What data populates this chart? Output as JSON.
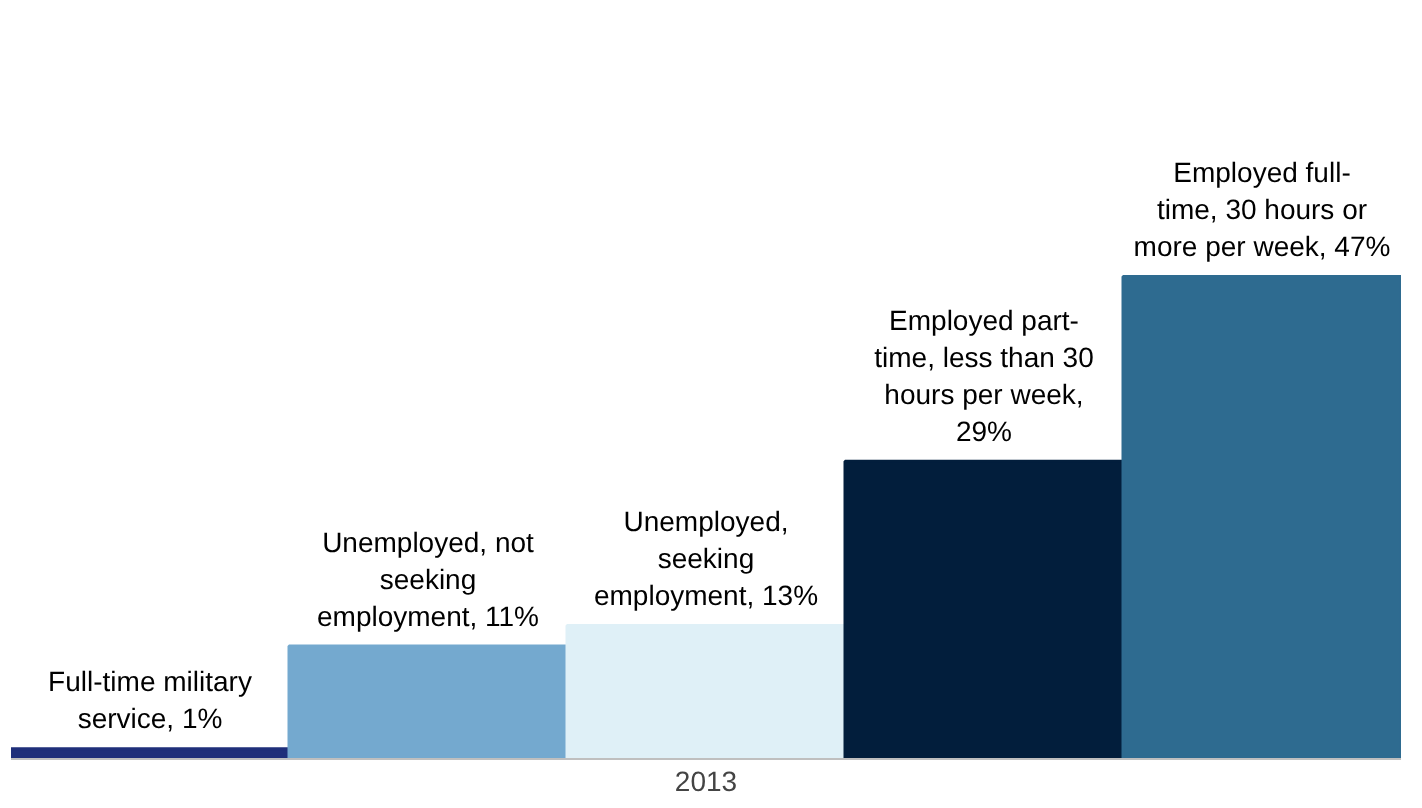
{
  "chart_data": {
    "type": "bar",
    "xlabel": "2013",
    "categories": [
      null,
      null,
      null,
      null,
      null
    ],
    "values": [
      1,
      11,
      13,
      29,
      47
    ],
    "colors": [
      "#1f2f7a",
      "#74a9cf",
      "#dff0f7",
      "#021e3c",
      "#2e6b90"
    ],
    "value_labels": [
      "Full-time military service, 1%",
      "Unemployed, not seeking employment, 11%",
      "Unemployed, seeking employment, 13%",
      "Employed part-time, less than 30 hours per week, 29%",
      "Employed full-time, 30 hours or more per week, 47%"
    ],
    "grid": false
  }
}
